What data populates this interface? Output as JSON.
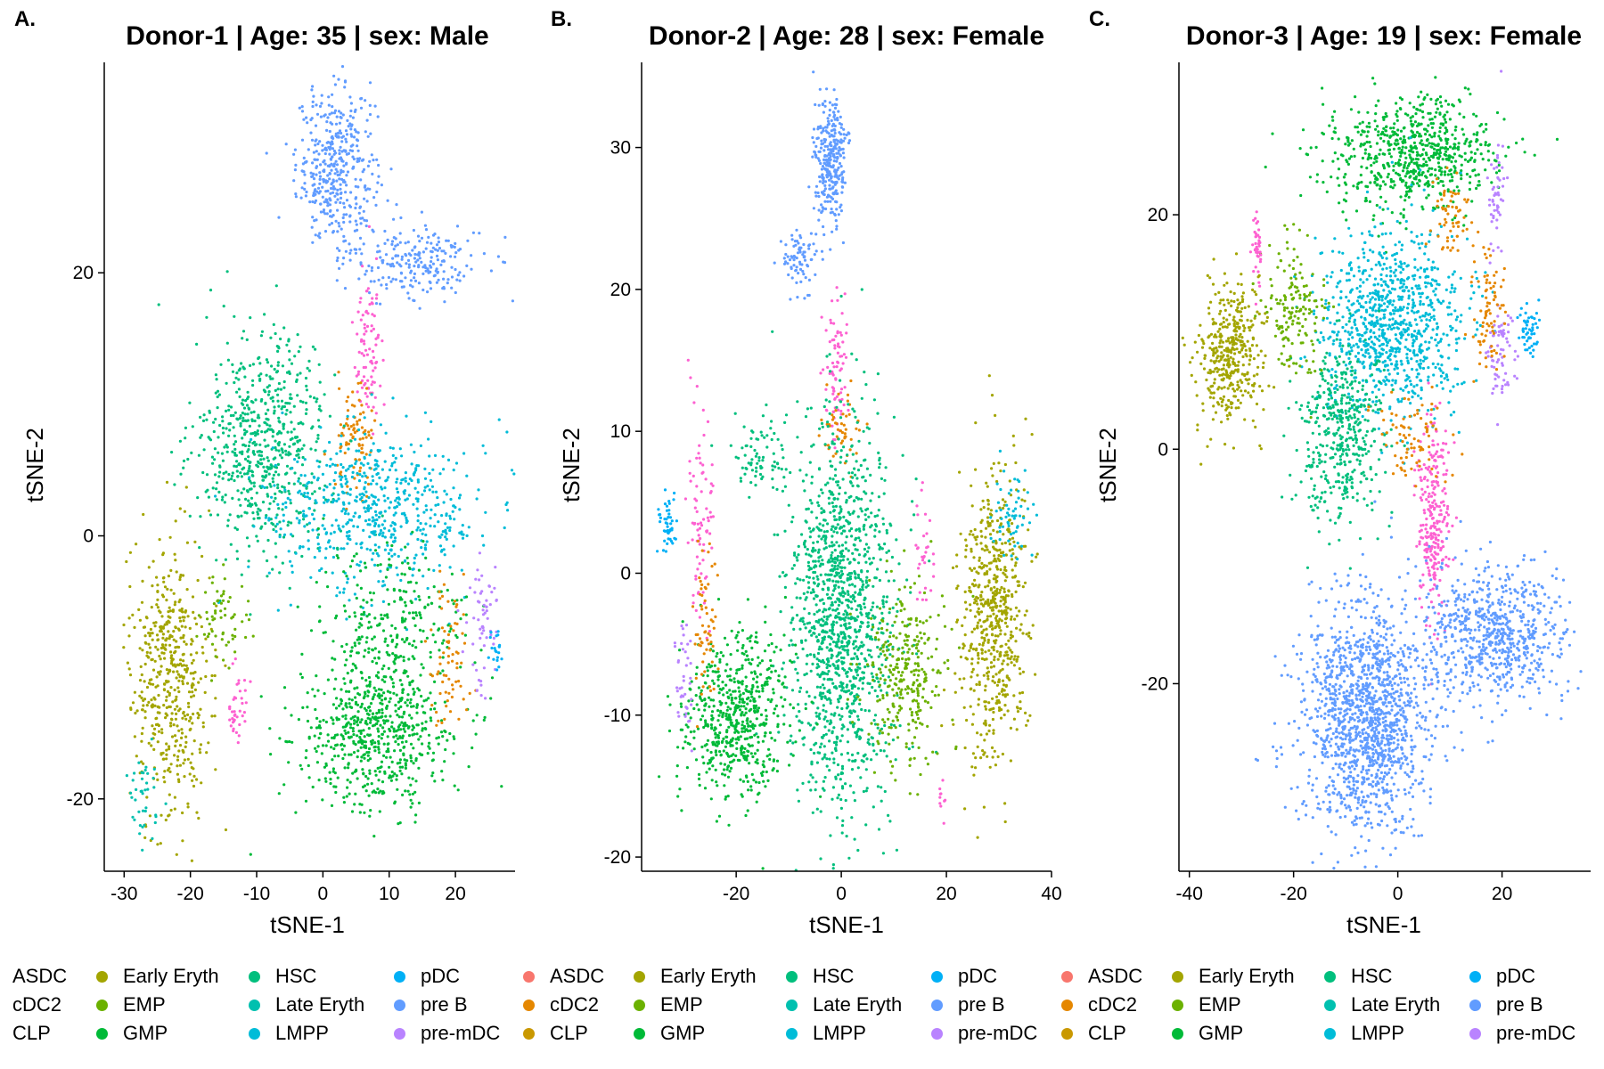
{
  "panels": [
    {
      "letter": "A.",
      "title": "Donor-1 | Age: 35 | sex: Male"
    },
    {
      "letter": "B.",
      "title": "Donor-2 | Age: 28 | sex: Female"
    },
    {
      "letter": "C.",
      "title": "Donor-3 | Age: 19 | sex: Female"
    }
  ],
  "legend": {
    "columns": [
      [
        "ASDC",
        "cDC2",
        "CLP"
      ],
      [
        "Early Eryth",
        "EMP",
        "GMP"
      ],
      [
        "HSC",
        "Late Eryth",
        "LMPP"
      ],
      [
        "pDC",
        "pre B",
        "pre-mDC"
      ]
    ]
  },
  "colors": {
    "ASDC": "#F8766D",
    "cDC2": "#E58700",
    "CLP": "#C99800",
    "Early Eryth": "#A3A500",
    "EMP": "#6BB100",
    "GMP": "#00BA38",
    "HSC": "#00BF7D",
    "Late Eryth": "#00C0AF",
    "LMPP": "#00BCD8",
    "pDC": "#00B0F6",
    "pre B": "#619CFF",
    "pre-mDC": "#B983FF",
    "pre-mDC pink": "#FD61D1"
  },
  "chart_data": [
    {
      "type": "scatter",
      "title": "Donor-1 | Age: 35 | sex: Male",
      "xlabel": "tSNE-1",
      "ylabel": "tSNE-2",
      "xlim": [
        -33,
        29
      ],
      "ylim": [
        -25.5,
        36
      ],
      "xticks": [
        -30,
        -20,
        -10,
        0,
        10,
        20
      ],
      "yticks": [
        -20,
        0,
        20
      ],
      "grid": false,
      "legend_position": "bottom",
      "clusters": [
        {
          "name": "pre B",
          "cx": 2,
          "cy": 28,
          "sx": 3,
          "sy": 3,
          "n": 420
        },
        {
          "name": "pre B",
          "cx": 14,
          "cy": 21,
          "sx": 5,
          "sy": 1.5,
          "n": 220
        },
        {
          "name": "pre-mDC pink",
          "cx": 7,
          "cy": 14,
          "sx": 1.2,
          "sy": 3,
          "n": 90
        },
        {
          "name": "cDC2",
          "cx": 5,
          "cy": 7,
          "sx": 1.5,
          "sy": 2.5,
          "n": 90
        },
        {
          "name": "HSC",
          "cx": -9,
          "cy": 7,
          "sx": 5,
          "sy": 4,
          "n": 650
        },
        {
          "name": "LMPP",
          "cx": 8,
          "cy": 2,
          "sx": 8,
          "sy": 3,
          "n": 600
        },
        {
          "name": "GMP",
          "cx": 8,
          "cy": -15,
          "sx": 6,
          "sy": 3,
          "n": 650
        },
        {
          "name": "GMP",
          "cx": 10,
          "cy": -6,
          "sx": 6,
          "sy": 2.5,
          "n": 250
        },
        {
          "name": "Early Eryth",
          "cx": -23,
          "cy": -11,
          "sx": 3,
          "sy": 5,
          "n": 500
        },
        {
          "name": "Late Eryth",
          "cx": -27,
          "cy": -20,
          "sx": 1,
          "sy": 2,
          "n": 40
        },
        {
          "name": "cDC2",
          "cx": 19,
          "cy": -9,
          "sx": 1.5,
          "sy": 3,
          "n": 70
        },
        {
          "name": "pre-mDC",
          "cx": 24,
          "cy": -7,
          "sx": 1.2,
          "sy": 3,
          "n": 60
        },
        {
          "name": "pDC",
          "cx": 26,
          "cy": -9,
          "sx": 0.6,
          "sy": 0.8,
          "n": 20
        },
        {
          "name": "pre-mDC pink",
          "cx": -13,
          "cy": -13,
          "sx": 0.8,
          "sy": 1.5,
          "n": 40
        },
        {
          "name": "EMP",
          "cx": -15,
          "cy": -6,
          "sx": 2,
          "sy": 2,
          "n": 60
        }
      ]
    },
    {
      "type": "scatter",
      "title": "Donor-2 | Age: 28 | sex: Female",
      "xlabel": "tSNE-1",
      "ylabel": "tSNE-2",
      "xlim": [
        -38,
        40
      ],
      "ylim": [
        -21,
        36
      ],
      "xticks": [
        -20,
        0,
        20,
        40
      ],
      "yticks": [
        -20,
        -10,
        0,
        10,
        20,
        30
      ],
      "grid": false,
      "legend_position": "bottom",
      "clusters": [
        {
          "name": "pre B",
          "cx": -2,
          "cy": 29,
          "sx": 1.5,
          "sy": 2.2,
          "n": 300
        },
        {
          "name": "pre B",
          "cx": -8,
          "cy": 22,
          "sx": 1.8,
          "sy": 1,
          "n": 80
        },
        {
          "name": "pre-mDC pink",
          "cx": -1,
          "cy": 14,
          "sx": 1,
          "sy": 3,
          "n": 80
        },
        {
          "name": "cDC2",
          "cx": 0,
          "cy": 10,
          "sx": 2,
          "sy": 1.5,
          "n": 50
        },
        {
          "name": "HSC",
          "cx": 0,
          "cy": -3,
          "sx": 5,
          "sy": 7,
          "n": 1300
        },
        {
          "name": "GMP",
          "cx": -20,
          "cy": -10,
          "sx": 5,
          "sy": 3,
          "n": 600
        },
        {
          "name": "EMP",
          "cx": 12,
          "cy": -7,
          "sx": 4,
          "sy": 3,
          "n": 300
        },
        {
          "name": "Early Eryth",
          "cx": 29,
          "cy": -3,
          "sx": 3,
          "sy": 5,
          "n": 600
        },
        {
          "name": "LMPP",
          "cx": 32,
          "cy": 4,
          "sx": 2,
          "sy": 1.5,
          "n": 60
        },
        {
          "name": "pDC",
          "cx": -33,
          "cy": 3.5,
          "sx": 0.9,
          "sy": 1,
          "n": 50
        },
        {
          "name": "pre-mDC pink",
          "cx": -27,
          "cy": 4,
          "sx": 1.2,
          "sy": 4,
          "n": 80
        },
        {
          "name": "cDC2",
          "cx": -26,
          "cy": -3,
          "sx": 1.2,
          "sy": 3,
          "n": 60
        },
        {
          "name": "pre-mDC",
          "cx": -30,
          "cy": -7,
          "sx": 1,
          "sy": 2,
          "n": 40
        },
        {
          "name": "pre-mDC pink",
          "cx": 16,
          "cy": 1,
          "sx": 1,
          "sy": 2,
          "n": 30
        },
        {
          "name": "pre-mDC pink",
          "cx": 19,
          "cy": -16,
          "sx": 0.3,
          "sy": 0.6,
          "n": 10
        },
        {
          "name": "HSC",
          "cx": -15,
          "cy": 8,
          "sx": 3,
          "sy": 1.5,
          "n": 80
        }
      ]
    },
    {
      "type": "scatter",
      "title": "Donor-3 | Age: 19 | sex: Female",
      "xlabel": "tSNE-1",
      "ylabel": "tSNE-2",
      "xlim": [
        -42,
        37
      ],
      "ylim": [
        -36,
        33
      ],
      "xticks": [
        -40,
        -20,
        0,
        20
      ],
      "yticks": [
        -20,
        0,
        20
      ],
      "grid": false,
      "legend_position": "bottom",
      "clusters": [
        {
          "name": "GMP",
          "cx": 3,
          "cy": 25,
          "sx": 8,
          "sy": 2.5,
          "n": 700
        },
        {
          "name": "LMPP",
          "cx": -1,
          "cy": 11,
          "sx": 7,
          "sy": 4,
          "n": 900
        },
        {
          "name": "HSC",
          "cx": -11,
          "cy": 1,
          "sx": 4,
          "sy": 4,
          "n": 450
        },
        {
          "name": "Early Eryth",
          "cx": -32,
          "cy": 8,
          "sx": 3,
          "sy": 3,
          "n": 400
        },
        {
          "name": "EMP",
          "cx": -20,
          "cy": 12,
          "sx": 3,
          "sy": 3,
          "n": 160
        },
        {
          "name": "pre-mDC pink",
          "cx": 7,
          "cy": -6,
          "sx": 1.5,
          "sy": 4,
          "n": 260
        },
        {
          "name": "pre B",
          "cx": -6,
          "cy": -23,
          "sx": 6,
          "sy": 5,
          "n": 1400
        },
        {
          "name": "pre B",
          "cx": 18,
          "cy": -16,
          "sx": 7,
          "sy": 3,
          "n": 700
        },
        {
          "name": "pDC",
          "cx": 25,
          "cy": 10,
          "sx": 1,
          "sy": 1,
          "n": 50
        },
        {
          "name": "pre-mDC",
          "cx": 20,
          "cy": 8,
          "sx": 1.5,
          "sy": 2,
          "n": 70
        },
        {
          "name": "cDC2",
          "cx": 17,
          "cy": 12,
          "sx": 1.5,
          "sy": 3,
          "n": 80
        },
        {
          "name": "pre-mDC",
          "cx": 19,
          "cy": 22,
          "sx": 1,
          "sy": 2.5,
          "n": 50
        },
        {
          "name": "cDC2",
          "cx": 10,
          "cy": 20,
          "sx": 2,
          "sy": 2,
          "n": 60
        },
        {
          "name": "pre-mDC pink",
          "cx": -27,
          "cy": 17,
          "sx": 0.5,
          "sy": 2,
          "n": 40
        },
        {
          "name": "cDC2",
          "cx": 3,
          "cy": 1,
          "sx": 3,
          "sy": 2,
          "n": 80
        }
      ]
    }
  ]
}
